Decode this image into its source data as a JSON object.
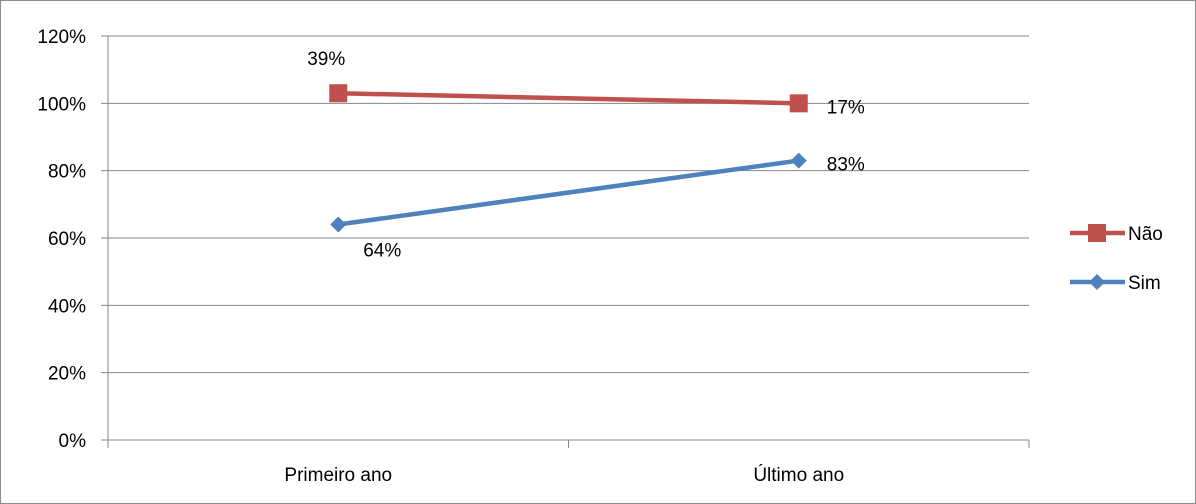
{
  "chart_data": {
    "type": "line",
    "categories": [
      "Primeiro ano",
      "Último ano"
    ],
    "y_ticks": [
      "0%",
      "20%",
      "40%",
      "60%",
      "80%",
      "100%",
      "120%"
    ],
    "ylim": [
      0,
      120
    ],
    "grid": true,
    "legend_position": "right",
    "series": [
      {
        "name": "Não",
        "color": "#c0504d",
        "marker": "square",
        "values": [
          103,
          100
        ],
        "data_labels": [
          "39%",
          "17%"
        ]
      },
      {
        "name": "Sim",
        "color": "#4f81bd",
        "marker": "diamond",
        "values": [
          64,
          83
        ],
        "data_labels": [
          "64%",
          "83%"
        ]
      }
    ]
  }
}
